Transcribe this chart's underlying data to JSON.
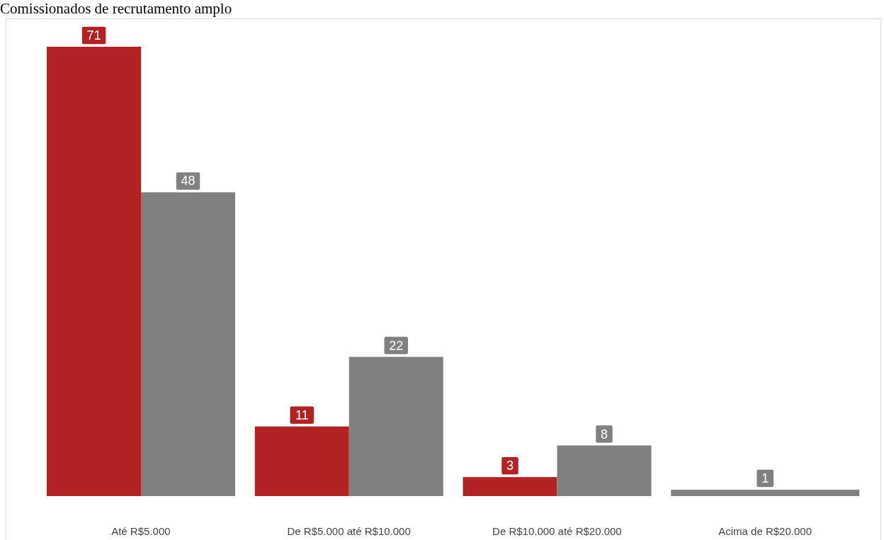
{
  "chart_data": {
    "type": "bar",
    "title": "Comissionados de recrutamento amplo",
    "categories": [
      "Até R$5.000",
      "De R$5.000 até R$10.000",
      "De R$10.000 até R$20.000",
      "Acima de R$20.000"
    ],
    "series": [
      {
        "color": "#b22222",
        "values": [
          71,
          11,
          3,
          null
        ]
      },
      {
        "color": "#808080",
        "values": [
          48,
          22,
          8,
          1
        ]
      }
    ],
    "data_labels": true,
    "tick_labels": "x"
  }
}
